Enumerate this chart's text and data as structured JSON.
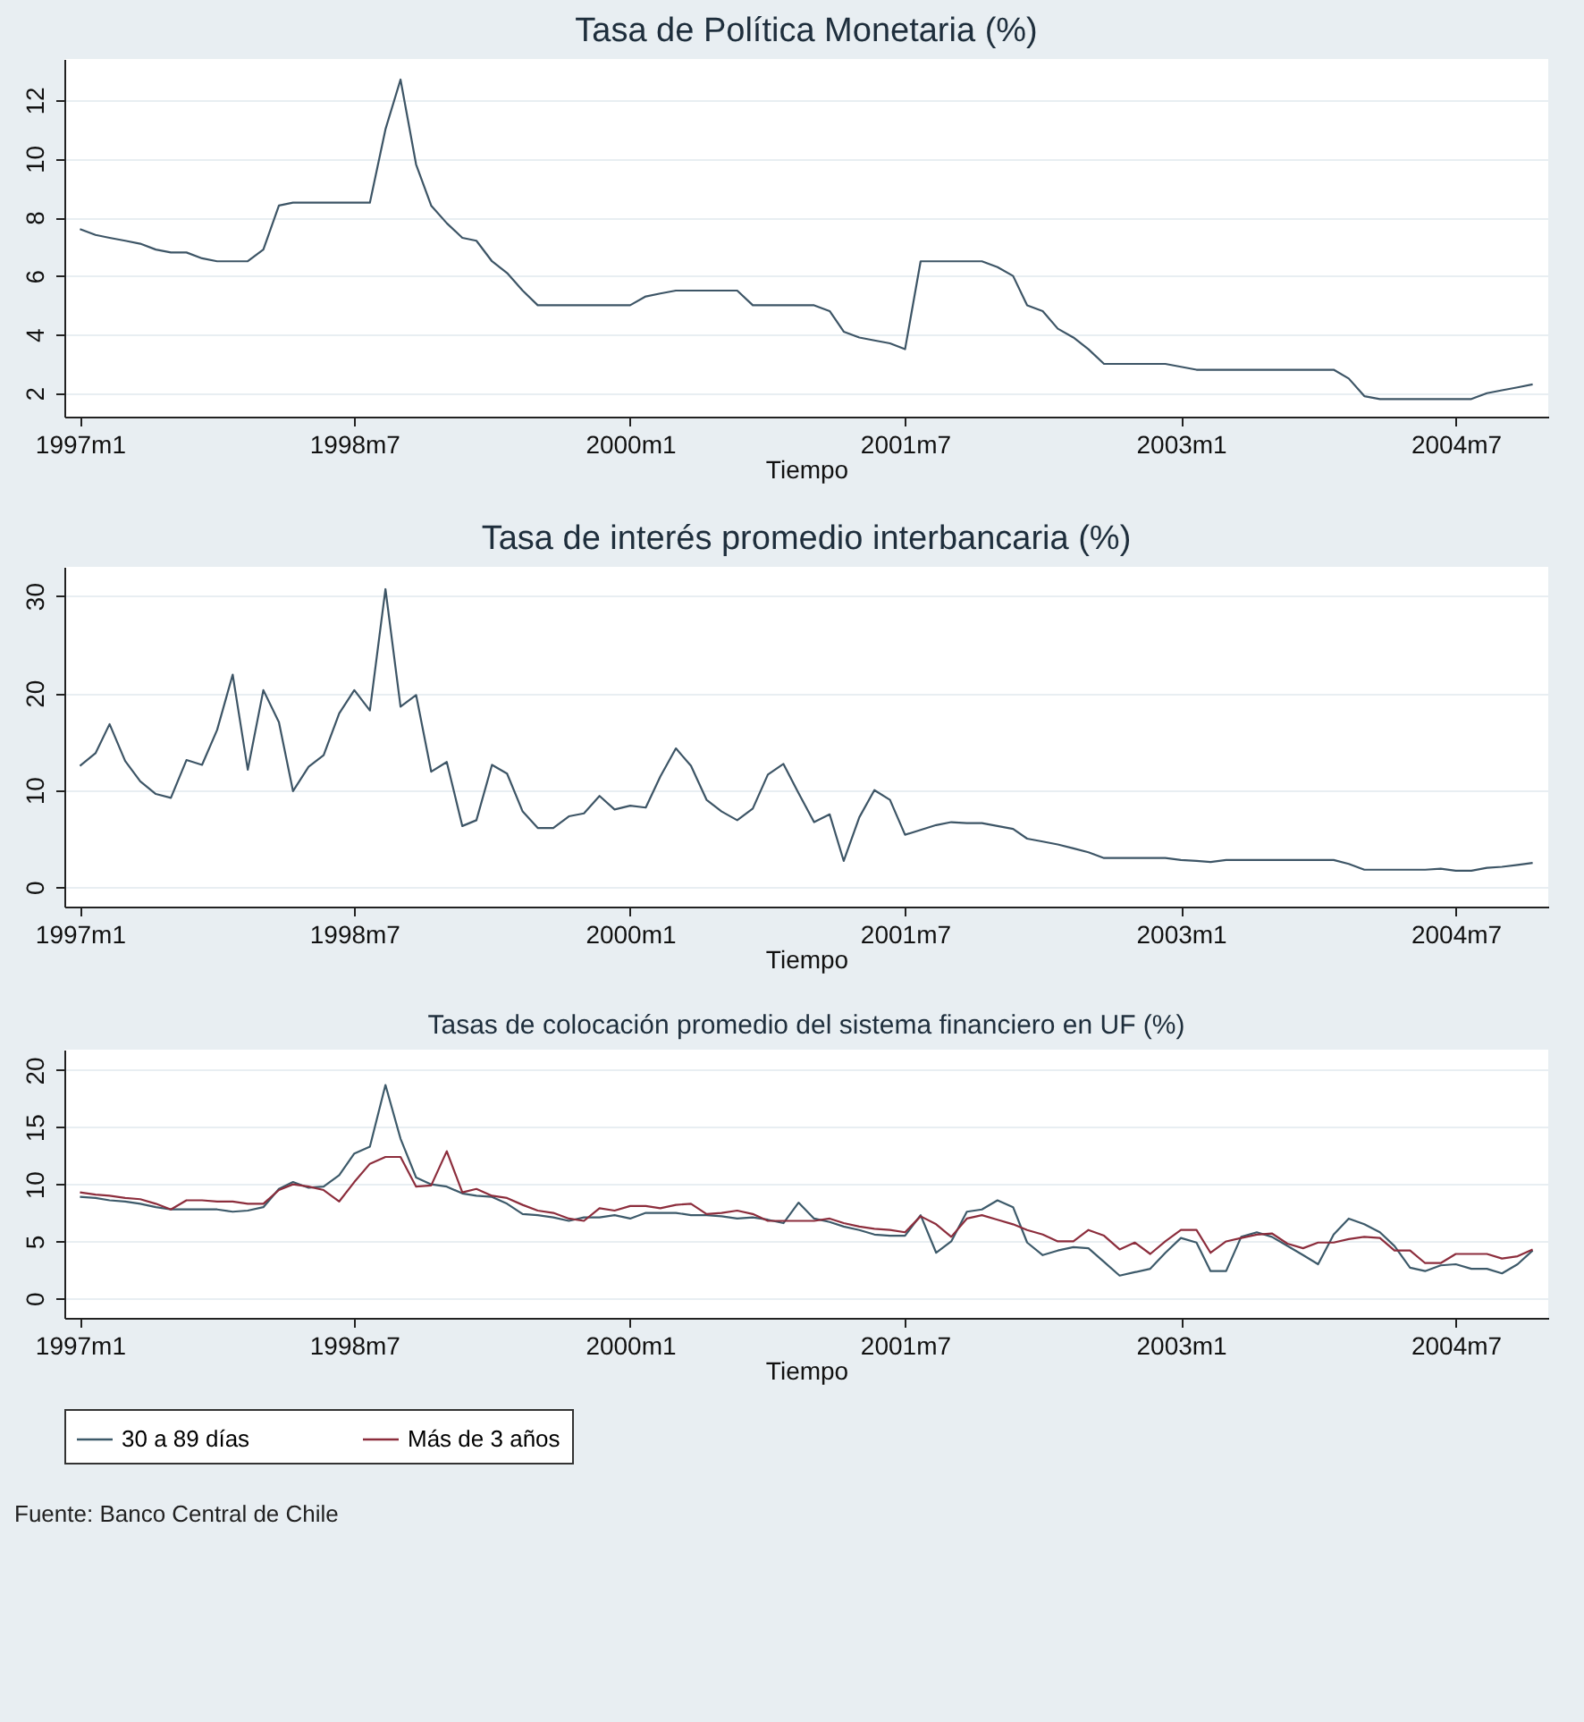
{
  "chart_data": [
    {
      "type": "line",
      "title": "Tasa de Política Monetaria (%)",
      "xlabel": "Tiempo",
      "x": [
        "1997-01",
        "1997-02",
        "1997-03",
        "1997-04",
        "1997-05",
        "1997-06",
        "1997-07",
        "1997-08",
        "1997-09",
        "1997-10",
        "1997-11",
        "1997-12",
        "1998-01",
        "1998-02",
        "1998-03",
        "1998-04",
        "1998-05",
        "1998-06",
        "1998-07",
        "1998-08",
        "1998-09",
        "1998-10",
        "1998-11",
        "1998-12",
        "1999-01",
        "1999-02",
        "1999-03",
        "1999-04",
        "1999-05",
        "1999-06",
        "1999-07",
        "1999-08",
        "1999-09",
        "1999-10",
        "1999-11",
        "1999-12",
        "2000-01",
        "2000-02",
        "2000-03",
        "2000-04",
        "2000-05",
        "2000-06",
        "2000-07",
        "2000-08",
        "2000-09",
        "2000-10",
        "2000-11",
        "2000-12",
        "2001-01",
        "2001-02",
        "2001-03",
        "2001-04",
        "2001-05",
        "2001-06",
        "2001-07",
        "2001-08",
        "2001-09",
        "2001-10",
        "2001-11",
        "2001-12",
        "2002-01",
        "2002-02",
        "2002-03",
        "2002-04",
        "2002-05",
        "2002-06",
        "2002-07",
        "2002-08",
        "2002-09",
        "2002-10",
        "2002-11",
        "2002-12",
        "2003-01",
        "2003-02",
        "2003-03",
        "2003-04",
        "2003-05",
        "2003-06",
        "2003-07",
        "2003-08",
        "2003-09",
        "2003-10",
        "2003-11",
        "2003-12",
        "2004-01",
        "2004-02",
        "2004-03",
        "2004-04",
        "2004-05",
        "2004-06",
        "2004-07",
        "2004-08",
        "2004-09",
        "2004-10",
        "2004-11",
        "2004-12"
      ],
      "series": [
        {
          "color": "#3d5566",
          "values": [
            7.6,
            7.4,
            7.3,
            7.2,
            7.1,
            6.9,
            6.8,
            6.8,
            6.6,
            6.5,
            6.5,
            6.5,
            6.9,
            8.4,
            8.5,
            8.5,
            8.5,
            8.5,
            8.5,
            8.5,
            11.0,
            12.7,
            9.8,
            8.4,
            7.8,
            7.3,
            7.2,
            6.5,
            6.1,
            5.5,
            5.0,
            5.0,
            5.0,
            5.0,
            5.0,
            5.0,
            5.0,
            5.3,
            5.4,
            5.5,
            5.5,
            5.5,
            5.5,
            5.5,
            5.0,
            5.0,
            5.0,
            5.0,
            5.0,
            4.8,
            4.1,
            3.9,
            3.8,
            3.7,
            3.5,
            6.5,
            6.5,
            6.5,
            6.5,
            6.5,
            6.3,
            6.0,
            5.0,
            4.8,
            4.2,
            3.9,
            3.5,
            3.0,
            3.0,
            3.0,
            3.0,
            3.0,
            2.9,
            2.8,
            2.8,
            2.8,
            2.8,
            2.8,
            2.8,
            2.8,
            2.8,
            2.8,
            2.8,
            2.5,
            1.9,
            1.8,
            1.8,
            1.8,
            1.8,
            1.8,
            1.8,
            1.8,
            2.0,
            2.1,
            2.2,
            2.3
          ]
        }
      ],
      "xlim": [
        "1996-12",
        "2005-01"
      ],
      "xticks": [
        {
          "value": "1997-01",
          "label": "1997m1"
        },
        {
          "value": "1998-07",
          "label": "1998m7"
        },
        {
          "value": "2000-01",
          "label": "2000m1"
        },
        {
          "value": "2001-07",
          "label": "2001m7"
        },
        {
          "value": "2003-01",
          "label": "2003m1"
        },
        {
          "value": "2004-07",
          "label": "2004m7"
        }
      ],
      "ylim": [
        1.2,
        13.4
      ],
      "yticks": [
        2,
        4,
        6,
        8,
        10,
        12
      ],
      "grid": "y",
      "legend": false
    },
    {
      "type": "line",
      "title": "Tasa de interés promedio interbancaria (%)",
      "xlabel": "Tiempo",
      "x": [
        "1997-01",
        "1997-02",
        "1997-03",
        "1997-04",
        "1997-05",
        "1997-06",
        "1997-07",
        "1997-08",
        "1997-09",
        "1997-10",
        "1997-11",
        "1997-12",
        "1998-01",
        "1998-02",
        "1998-03",
        "1998-04",
        "1998-05",
        "1998-06",
        "1998-07",
        "1998-08",
        "1998-09",
        "1998-10",
        "1998-11",
        "1998-12",
        "1999-01",
        "1999-02",
        "1999-03",
        "1999-04",
        "1999-05",
        "1999-06",
        "1999-07",
        "1999-08",
        "1999-09",
        "1999-10",
        "1999-11",
        "1999-12",
        "2000-01",
        "2000-02",
        "2000-03",
        "2000-04",
        "2000-05",
        "2000-06",
        "2000-07",
        "2000-08",
        "2000-09",
        "2000-10",
        "2000-11",
        "2000-12",
        "2001-01",
        "2001-02",
        "2001-03",
        "2001-04",
        "2001-05",
        "2001-06",
        "2001-07",
        "2001-08",
        "2001-09",
        "2001-10",
        "2001-11",
        "2001-12",
        "2002-01",
        "2002-02",
        "2002-03",
        "2002-04",
        "2002-05",
        "2002-06",
        "2002-07",
        "2002-08",
        "2002-09",
        "2002-10",
        "2002-11",
        "2002-12",
        "2003-01",
        "2003-02",
        "2003-03",
        "2003-04",
        "2003-05",
        "2003-06",
        "2003-07",
        "2003-08",
        "2003-09",
        "2003-10",
        "2003-11",
        "2003-12",
        "2004-01",
        "2004-02",
        "2004-03",
        "2004-04",
        "2004-05",
        "2004-06",
        "2004-07",
        "2004-08",
        "2004-09",
        "2004-10",
        "2004-11",
        "2004-12"
      ],
      "series": [
        {
          "color": "#3d5566",
          "values": [
            12.5,
            13.8,
            16.8,
            13.0,
            10.9,
            9.6,
            9.2,
            13.1,
            12.6,
            16.2,
            21.9,
            12.1,
            20.3,
            17.0,
            9.9,
            12.4,
            13.6,
            17.9,
            20.3,
            18.2,
            30.7,
            18.6,
            19.8,
            11.9,
            12.9,
            6.3,
            6.9,
            12.6,
            11.7,
            7.8,
            6.1,
            6.1,
            7.3,
            7.6,
            9.4,
            8.0,
            8.4,
            8.2,
            11.4,
            14.3,
            12.5,
            9.0,
            7.8,
            6.9,
            8.1,
            11.6,
            12.7,
            9.7,
            6.7,
            7.5,
            2.7,
            7.2,
            10.0,
            9.0,
            5.4,
            5.9,
            6.4,
            6.7,
            6.6,
            6.6,
            6.3,
            6.0,
            5.0,
            4.7,
            4.4,
            4.0,
            3.6,
            3.0,
            3.0,
            3.0,
            3.0,
            3.0,
            2.8,
            2.7,
            2.6,
            2.8,
            2.8,
            2.8,
            2.8,
            2.8,
            2.8,
            2.8,
            2.8,
            2.4,
            1.8,
            1.8,
            1.8,
            1.8,
            1.8,
            1.9,
            1.7,
            1.7,
            2.0,
            2.1,
            2.3,
            2.5
          ]
        }
      ],
      "xlim": [
        "1996-12",
        "2005-01"
      ],
      "xticks": [
        {
          "value": "1997-01",
          "label": "1997m1"
        },
        {
          "value": "1998-07",
          "label": "1998m7"
        },
        {
          "value": "2000-01",
          "label": "2000m1"
        },
        {
          "value": "2001-07",
          "label": "2001m7"
        },
        {
          "value": "2003-01",
          "label": "2003m1"
        },
        {
          "value": "2004-07",
          "label": "2004m7"
        }
      ],
      "ylim": [
        -2,
        33
      ],
      "yticks": [
        0,
        10,
        20,
        30
      ],
      "grid": "y",
      "legend": false
    },
    {
      "type": "line",
      "title": "Tasas de colocación promedio del sistema financiero en UF (%)",
      "xlabel": "Tiempo",
      "x": [
        "1997-01",
        "1997-02",
        "1997-03",
        "1997-04",
        "1997-05",
        "1997-06",
        "1997-07",
        "1997-08",
        "1997-09",
        "1997-10",
        "1997-11",
        "1997-12",
        "1998-01",
        "1998-02",
        "1998-03",
        "1998-04",
        "1998-05",
        "1998-06",
        "1998-07",
        "1998-08",
        "1998-09",
        "1998-10",
        "1998-11",
        "1998-12",
        "1999-01",
        "1999-02",
        "1999-03",
        "1999-04",
        "1999-05",
        "1999-06",
        "1999-07",
        "1999-08",
        "1999-09",
        "1999-10",
        "1999-11",
        "1999-12",
        "2000-01",
        "2000-02",
        "2000-03",
        "2000-04",
        "2000-05",
        "2000-06",
        "2000-07",
        "2000-08",
        "2000-09",
        "2000-10",
        "2000-11",
        "2000-12",
        "2001-01",
        "2001-02",
        "2001-03",
        "2001-04",
        "2001-05",
        "2001-06",
        "2001-07",
        "2001-08",
        "2001-09",
        "2001-10",
        "2001-11",
        "2001-12",
        "2002-01",
        "2002-02",
        "2002-03",
        "2002-04",
        "2002-05",
        "2002-06",
        "2002-07",
        "2002-08",
        "2002-09",
        "2002-10",
        "2002-11",
        "2002-12",
        "2003-01",
        "2003-02",
        "2003-03",
        "2003-04",
        "2003-05",
        "2003-06",
        "2003-07",
        "2003-08",
        "2003-09",
        "2003-10",
        "2003-11",
        "2003-12",
        "2004-01",
        "2004-02",
        "2004-03",
        "2004-04",
        "2004-05",
        "2004-06",
        "2004-07",
        "2004-08",
        "2004-09",
        "2004-10",
        "2004-11",
        "2004-12"
      ],
      "series": [
        {
          "name": "30 a 89 días",
          "color": "#3d5a6a",
          "values": [
            8.9,
            8.8,
            8.6,
            8.5,
            8.3,
            8.0,
            7.8,
            7.8,
            7.8,
            7.8,
            7.6,
            7.7,
            8.0,
            9.6,
            10.2,
            9.7,
            9.8,
            10.8,
            12.7,
            13.3,
            18.7,
            14.0,
            10.6,
            10.0,
            9.8,
            9.2,
            9.0,
            8.9,
            8.3,
            7.4,
            7.3,
            7.1,
            6.8,
            7.1,
            7.1,
            7.3,
            7.0,
            7.5,
            7.5,
            7.5,
            7.3,
            7.3,
            7.2,
            7.0,
            7.1,
            6.9,
            6.6,
            8.4,
            7.0,
            6.7,
            6.3,
            6.0,
            5.6,
            5.5,
            5.5,
            7.3,
            4.0,
            5.0,
            7.6,
            7.8,
            8.6,
            8.0,
            4.9,
            3.8,
            4.2,
            4.5,
            4.4,
            3.2,
            2.0,
            2.3,
            2.6,
            4.0,
            5.3,
            4.9,
            2.4,
            2.4,
            5.4,
            5.8,
            5.4,
            4.6,
            3.8,
            3.0,
            5.6,
            7.0,
            6.5,
            5.8,
            4.6,
            2.7,
            2.4,
            2.9,
            3.0,
            2.6,
            2.6,
            2.2,
            3.0,
            4.2
          ]
        },
        {
          "name": "Más de 3 años",
          "color": "#8c2d3c",
          "values": [
            9.3,
            9.1,
            9.0,
            8.8,
            8.7,
            8.3,
            7.8,
            8.6,
            8.6,
            8.5,
            8.5,
            8.3,
            8.3,
            9.5,
            10.0,
            9.8,
            9.5,
            8.5,
            10.2,
            11.8,
            12.4,
            12.4,
            9.8,
            9.9,
            12.9,
            9.3,
            9.6,
            9.0,
            8.8,
            8.2,
            7.7,
            7.5,
            7.0,
            6.8,
            7.9,
            7.7,
            8.1,
            8.1,
            7.9,
            8.2,
            8.3,
            7.4,
            7.5,
            7.7,
            7.4,
            6.8,
            6.8,
            6.8,
            6.8,
            7.0,
            6.6,
            6.3,
            6.1,
            6.0,
            5.8,
            7.2,
            6.5,
            5.4,
            7.0,
            7.3,
            6.9,
            6.5,
            6.0,
            5.6,
            5.0,
            5.0,
            6.0,
            5.5,
            4.3,
            4.9,
            3.9,
            5.0,
            6.0,
            6.0,
            4.0,
            5.0,
            5.3,
            5.6,
            5.7,
            4.8,
            4.4,
            4.9,
            4.9,
            5.2,
            5.4,
            5.3,
            4.2,
            4.2,
            3.1,
            3.1,
            3.9,
            3.9,
            3.9,
            3.5,
            3.7,
            4.3
          ]
        }
      ],
      "xlim": [
        "1996-12",
        "2005-01"
      ],
      "xticks": [
        {
          "value": "1997-01",
          "label": "1997m1"
        },
        {
          "value": "1998-07",
          "label": "1998m7"
        },
        {
          "value": "2000-01",
          "label": "2000m1"
        },
        {
          "value": "2001-07",
          "label": "2001m7"
        },
        {
          "value": "2003-01",
          "label": "2003m1"
        },
        {
          "value": "2004-07",
          "label": "2004m7"
        }
      ],
      "ylim": [
        -1.7,
        21.8
      ],
      "yticks": [
        0,
        5,
        10,
        15,
        20
      ],
      "grid": "y",
      "legend": "bottom",
      "annotations": [
        "Fuente: Banco Central de Chile"
      ]
    }
  ]
}
